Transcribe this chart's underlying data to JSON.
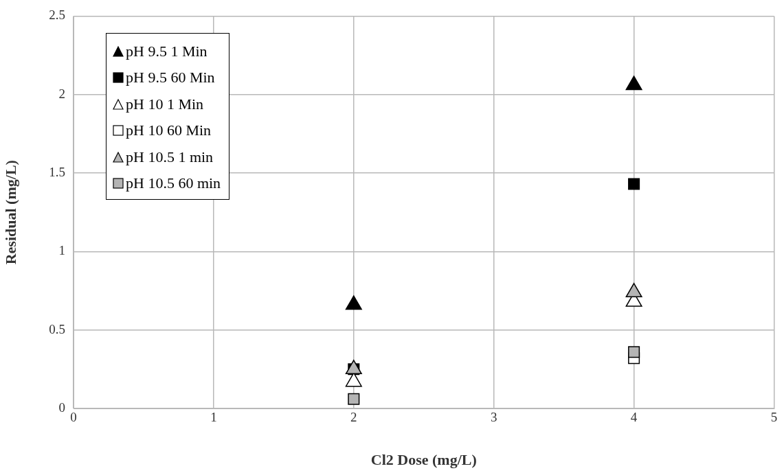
{
  "chart_data": {
    "type": "scatter",
    "xlabel": "Cl2 Dose (mg/L)",
    "ylabel": "Residual (mg/L)",
    "x": [
      2,
      4
    ],
    "xlim": [
      0,
      5
    ],
    "xticks": [
      0,
      1,
      2,
      3,
      4,
      5
    ],
    "ylim": [
      0,
      2.5
    ],
    "yticks": [
      0,
      0.5,
      1,
      1.5,
      2,
      2.5
    ],
    "grid": true,
    "legend": "top left",
    "series": [
      {
        "name": "pH 9.5 1 Min",
        "color": "#000000",
        "marker": "triangle",
        "values": [
          0.66,
          2.06
        ]
      },
      {
        "name": "pH 9.5 60 Min",
        "color": "#000000",
        "marker": "square",
        "values": [
          0.25,
          1.43
        ]
      },
      {
        "name": "pH 10 1 Min",
        "color": "#ffffff",
        "marker": "triangle",
        "values": [
          0.17,
          0.68
        ]
      },
      {
        "name": "pH 10 60 Min",
        "color": "#ffffff",
        "marker": "square",
        "values": [
          null,
          0.32
        ]
      },
      {
        "name": "pH 10.5 1 min",
        "color": "#b4b4b4",
        "marker": "triangle",
        "values": [
          0.25,
          0.74
        ]
      },
      {
        "name": "pH 10.5 60 min",
        "color": "#b4b4b4",
        "marker": "square",
        "values": [
          0.06,
          0.36
        ]
      }
    ]
  }
}
